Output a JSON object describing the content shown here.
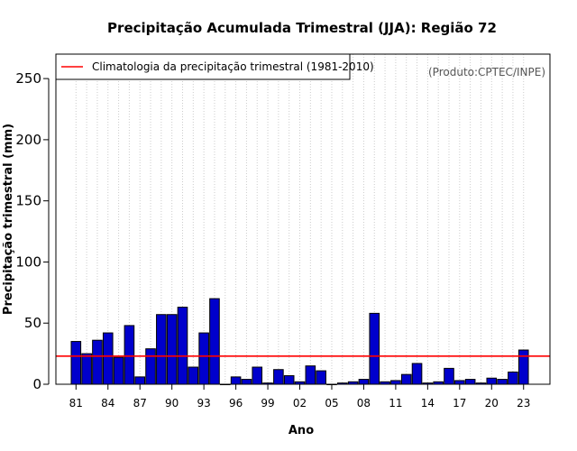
{
  "chart_data": {
    "type": "bar",
    "title": "Precipitação Acumulada Trimestral (JJA): Região 72",
    "xlabel": "Ano",
    "ylabel": "Precipitação trimestral (mm)",
    "ylim": [
      0,
      270
    ],
    "yticks": [
      0,
      50,
      100,
      150,
      200,
      250
    ],
    "years": [
      1981,
      1982,
      1983,
      1984,
      1985,
      1986,
      1987,
      1988,
      1989,
      1990,
      1991,
      1992,
      1993,
      1994,
      1995,
      1996,
      1997,
      1998,
      1999,
      2000,
      2001,
      2002,
      2003,
      2004,
      2005,
      2006,
      2007,
      2008,
      2009,
      2010,
      2011,
      2012,
      2013,
      2014,
      2015,
      2016,
      2017,
      2018,
      2019,
      2020,
      2021,
      2022,
      2023
    ],
    "values": [
      35,
      25,
      36,
      42,
      22,
      48,
      6,
      29,
      57,
      57,
      63,
      14,
      42,
      70,
      0,
      6,
      4,
      14,
      1,
      12,
      7,
      2,
      15,
      11,
      0,
      1,
      2,
      4,
      58,
      2,
      3,
      8,
      17,
      1,
      2,
      13,
      3,
      4,
      1,
      5,
      4,
      10,
      28
    ],
    "xtick_labels": [
      "81",
      "84",
      "87",
      "90",
      "93",
      "96",
      "99",
      "02",
      "05",
      "08",
      "11",
      "14",
      "17",
      "20",
      "23"
    ],
    "xtick_years": [
      1981,
      1984,
      1987,
      1990,
      1993,
      1996,
      1999,
      2002,
      2005,
      2008,
      2011,
      2014,
      2017,
      2020,
      2023
    ],
    "climatology": {
      "label": "Climatologia da precipitação trimestral (1981-2010)",
      "value": 23
    },
    "legend_position": "top-left",
    "grid": "vertical dotted",
    "bar_color": "#0000cc",
    "line_color": "#ff0000"
  },
  "source_note": "(Produto:CPTEC/INPE)"
}
